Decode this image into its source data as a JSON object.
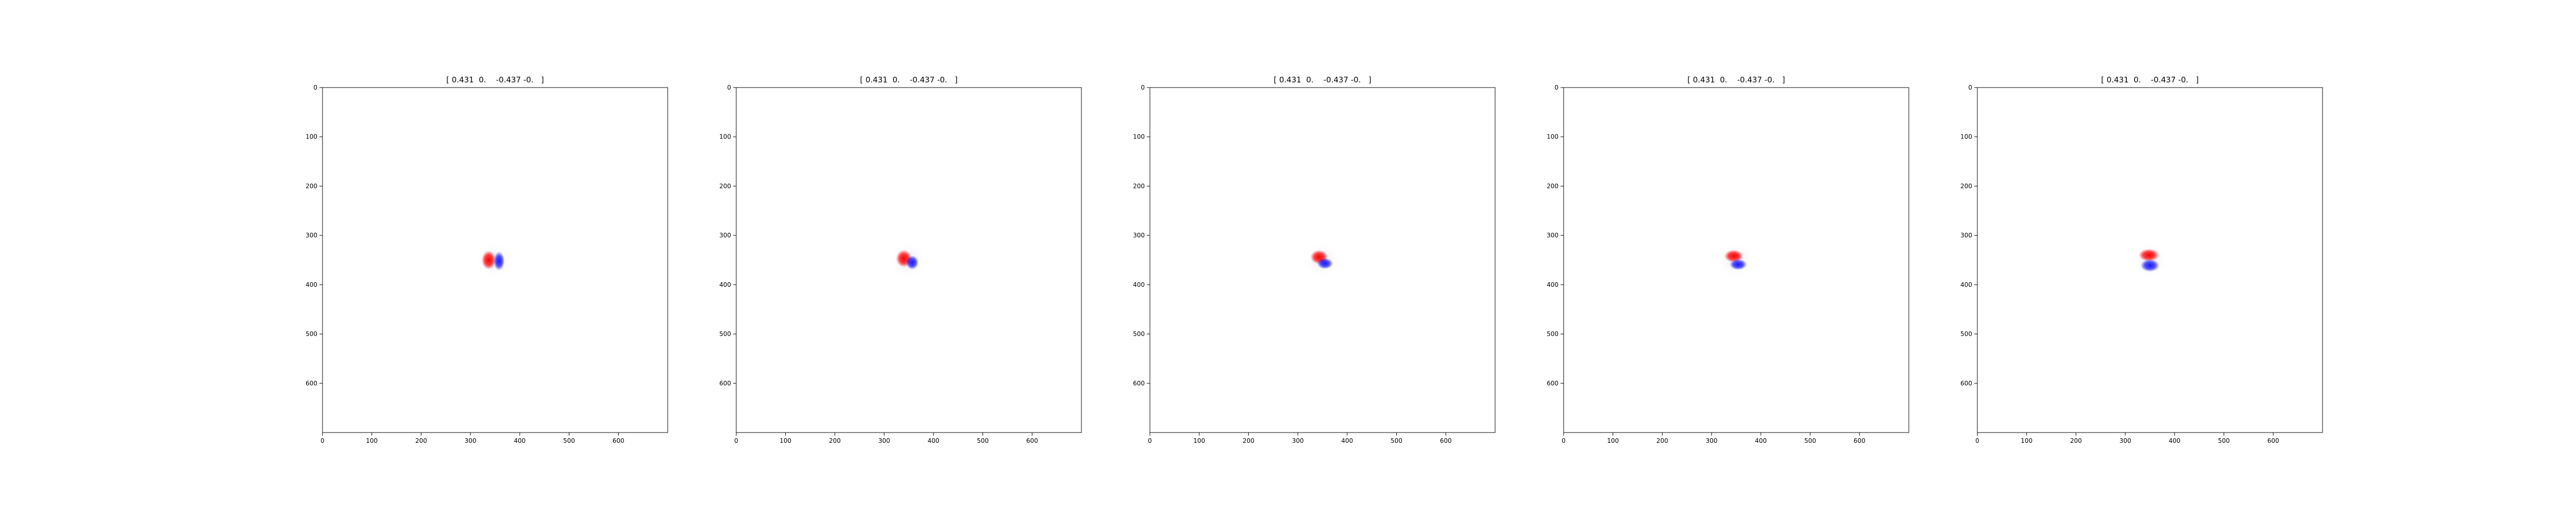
{
  "figure": {
    "background": "#ffffff"
  },
  "chart_data": [
    {
      "type": "heatmap",
      "title": "[ 0.431  0.    -0.437 -0.   ]",
      "xlabel": "",
      "ylabel": "",
      "xlim": [
        0,
        700
      ],
      "ylim": [
        700,
        0
      ],
      "x_ticks": [
        0,
        100,
        200,
        300,
        400,
        500,
        600
      ],
      "y_ticks": [
        0,
        100,
        200,
        300,
        400,
        500,
        600
      ],
      "grid": false,
      "colormap": "bwr",
      "colors": {
        "positive": "#ff0000",
        "negative": "#0000ff",
        "zero": "#ffffff",
        "frame": "#000000"
      },
      "blobs": [
        {
          "sign": "positive",
          "x": 337,
          "y": 350,
          "rx": 9,
          "ry": 12,
          "amplitude": 1.0
        },
        {
          "sign": "negative",
          "x": 358,
          "y": 352,
          "rx": 7,
          "ry": 12,
          "amplitude": 0.9
        }
      ]
    },
    {
      "type": "heatmap",
      "title": "[ 0.431  0.    -0.437 -0.   ]",
      "xlabel": "",
      "ylabel": "",
      "xlim": [
        0,
        700
      ],
      "ylim": [
        700,
        0
      ],
      "x_ticks": [
        0,
        100,
        200,
        300,
        400,
        500,
        600
      ],
      "y_ticks": [
        0,
        100,
        200,
        300,
        400,
        500,
        600
      ],
      "grid": false,
      "colormap": "bwr",
      "colors": {
        "positive": "#ff0000",
        "negative": "#0000ff",
        "zero": "#ffffff",
        "frame": "#000000"
      },
      "blobs": [
        {
          "sign": "positive",
          "x": 340,
          "y": 347,
          "rx": 10,
          "ry": 11,
          "amplitude": 1.0
        },
        {
          "sign": "negative",
          "x": 357,
          "y": 355,
          "rx": 8,
          "ry": 9,
          "amplitude": 0.9
        }
      ]
    },
    {
      "type": "heatmap",
      "title": "[ 0.431  0.    -0.437 -0.   ]",
      "xlabel": "",
      "ylabel": "",
      "xlim": [
        0,
        700
      ],
      "ylim": [
        700,
        0
      ],
      "x_ticks": [
        0,
        100,
        200,
        300,
        400,
        500,
        600
      ],
      "y_ticks": [
        0,
        100,
        200,
        300,
        400,
        500,
        600
      ],
      "grid": false,
      "colormap": "bwr",
      "colors": {
        "positive": "#ff0000",
        "negative": "#0000ff",
        "zero": "#ffffff",
        "frame": "#000000"
      },
      "blobs": [
        {
          "sign": "positive",
          "x": 343,
          "y": 344,
          "rx": 11,
          "ry": 9,
          "amplitude": 1.0
        },
        {
          "sign": "negative",
          "x": 355,
          "y": 357,
          "rx": 10,
          "ry": 7,
          "amplitude": 0.9
        }
      ]
    },
    {
      "type": "heatmap",
      "title": "[ 0.431  0.    -0.437 -0.   ]",
      "xlabel": "",
      "ylabel": "",
      "xlim": [
        0,
        700
      ],
      "ylim": [
        700,
        0
      ],
      "x_ticks": [
        0,
        100,
        200,
        300,
        400,
        500,
        600
      ],
      "y_ticks": [
        0,
        100,
        200,
        300,
        400,
        500,
        600
      ],
      "grid": false,
      "colormap": "bwr",
      "colors": {
        "positive": "#ff0000",
        "negative": "#0000ff",
        "zero": "#ffffff",
        "frame": "#000000"
      },
      "blobs": [
        {
          "sign": "positive",
          "x": 345,
          "y": 342,
          "rx": 12,
          "ry": 8,
          "amplitude": 1.0
        },
        {
          "sign": "negative",
          "x": 354,
          "y": 359,
          "rx": 11,
          "ry": 7,
          "amplitude": 0.9
        }
      ]
    },
    {
      "type": "heatmap",
      "title": "[ 0.431  0.    -0.437 -0.   ]",
      "xlabel": "",
      "ylabel": "",
      "xlim": [
        0,
        700
      ],
      "ylim": [
        700,
        0
      ],
      "x_ticks": [
        0,
        100,
        200,
        300,
        400,
        500,
        600
      ],
      "y_ticks": [
        0,
        100,
        200,
        300,
        400,
        500,
        600
      ],
      "grid": false,
      "colormap": "bwr",
      "colors": {
        "positive": "#ff0000",
        "negative": "#0000ff",
        "zero": "#ffffff",
        "frame": "#000000"
      },
      "blobs": [
        {
          "sign": "positive",
          "x": 348,
          "y": 340,
          "rx": 13,
          "ry": 8,
          "amplitude": 1.0
        },
        {
          "sign": "negative",
          "x": 350,
          "y": 361,
          "rx": 12,
          "ry": 8,
          "amplitude": 0.9
        }
      ]
    }
  ]
}
